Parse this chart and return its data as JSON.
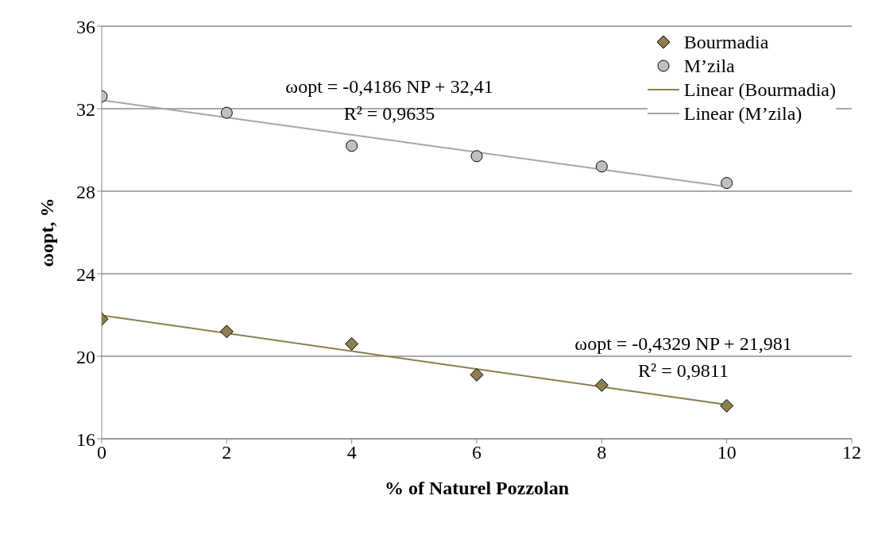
{
  "chart_data": {
    "type": "scatter",
    "xlabel": "% of Naturel Pozzolan",
    "ylabel": "ωopt, %",
    "xlim": [
      0,
      12
    ],
    "xticks": [
      0,
      2,
      4,
      6,
      8,
      10,
      12
    ],
    "ylim": [
      16,
      36
    ],
    "yticks": [
      16,
      20,
      24,
      28,
      32,
      36
    ],
    "grid": "y",
    "legend": "top right",
    "series": [
      {
        "name": "Bourmadia",
        "type": "scatter",
        "marker": "diamond",
        "color": "#8c7e4e",
        "x": [
          0,
          2,
          4,
          6,
          8,
          10
        ],
        "values": [
          21.8,
          21.2,
          20.6,
          19.1,
          18.6,
          17.6
        ]
      },
      {
        "name": "M’zila",
        "type": "scatter",
        "marker": "circle",
        "color": "#c0c0c0",
        "x": [
          0,
          2,
          4,
          6,
          8,
          10
        ],
        "values": [
          32.6,
          31.8,
          30.2,
          29.7,
          29.2,
          28.4
        ]
      },
      {
        "name": "Linear (Bourmadia)",
        "type": "line",
        "marker": "none",
        "color": "#8c7e4e",
        "x": [
          0,
          10
        ],
        "values": [
          21.98,
          17.65
        ]
      },
      {
        "name": "Linear (M’zila)",
        "type": "line",
        "marker": "none",
        "color": "#a6a6a6",
        "x": [
          0,
          10
        ],
        "values": [
          32.41,
          28.22
        ]
      }
    ],
    "annotations": [
      "ωopt = -0,4186 NP + 32,41",
      "R² = 0,9635",
      "ωopt = -0,4329 NP + 21,981",
      "R² = 0,9811"
    ]
  }
}
